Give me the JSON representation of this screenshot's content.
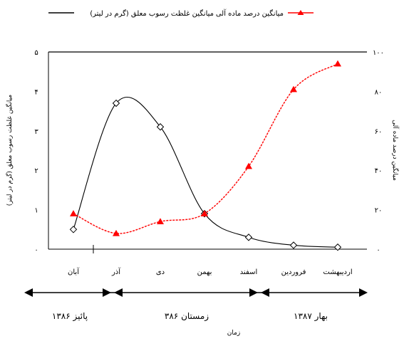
{
  "chart_data": {
    "type": "line",
    "legend": {
      "placement": "top",
      "entries": [
        {
          "label": "میانگین درصد ماده آلی",
          "series": "organic_matter"
        },
        {
          "label": "میانگین غلظت رسوب معلق (گرم در لیتر)",
          "series": "sediment"
        }
      ]
    },
    "categories": [
      "آبان",
      "آذر",
      "دی",
      "بهمن",
      "اسفند",
      "فروردین",
      "اردیبهشت"
    ],
    "xlabel": "زمان",
    "ylabel_left": "میانگین غلظت رسوب معلق (گرم در لیتر)",
    "ylabel_right": "میانگین درصد ماده آلی",
    "y_left": {
      "range": [
        0,
        5
      ],
      "ticks": [
        "۰",
        "۱",
        "۲",
        "۳",
        "۴",
        "۵"
      ]
    },
    "y_right": {
      "range": [
        0,
        100
      ],
      "ticks": [
        "۰",
        "۲۰",
        "۴۰",
        "۶۰",
        "۸۰",
        "۱۰۰"
      ]
    },
    "series": [
      {
        "id": "sediment",
        "axis": "left",
        "color": "#000000",
        "marker": "diamond-open",
        "values": [
          0.5,
          3.7,
          3.1,
          0.9,
          0.3,
          0.1,
          0.05
        ]
      },
      {
        "id": "organic_matter",
        "axis": "right",
        "color": "#ff0000",
        "marker": "triangle-filled",
        "values": [
          18,
          8,
          14,
          18,
          42,
          81,
          94
        ]
      }
    ],
    "seasons": [
      {
        "label": "پائیز ۱۳۸۶"
      },
      {
        "label": "زمستان ۳۸۶"
      },
      {
        "label": "بهار ۱۳۸۷"
      }
    ]
  }
}
